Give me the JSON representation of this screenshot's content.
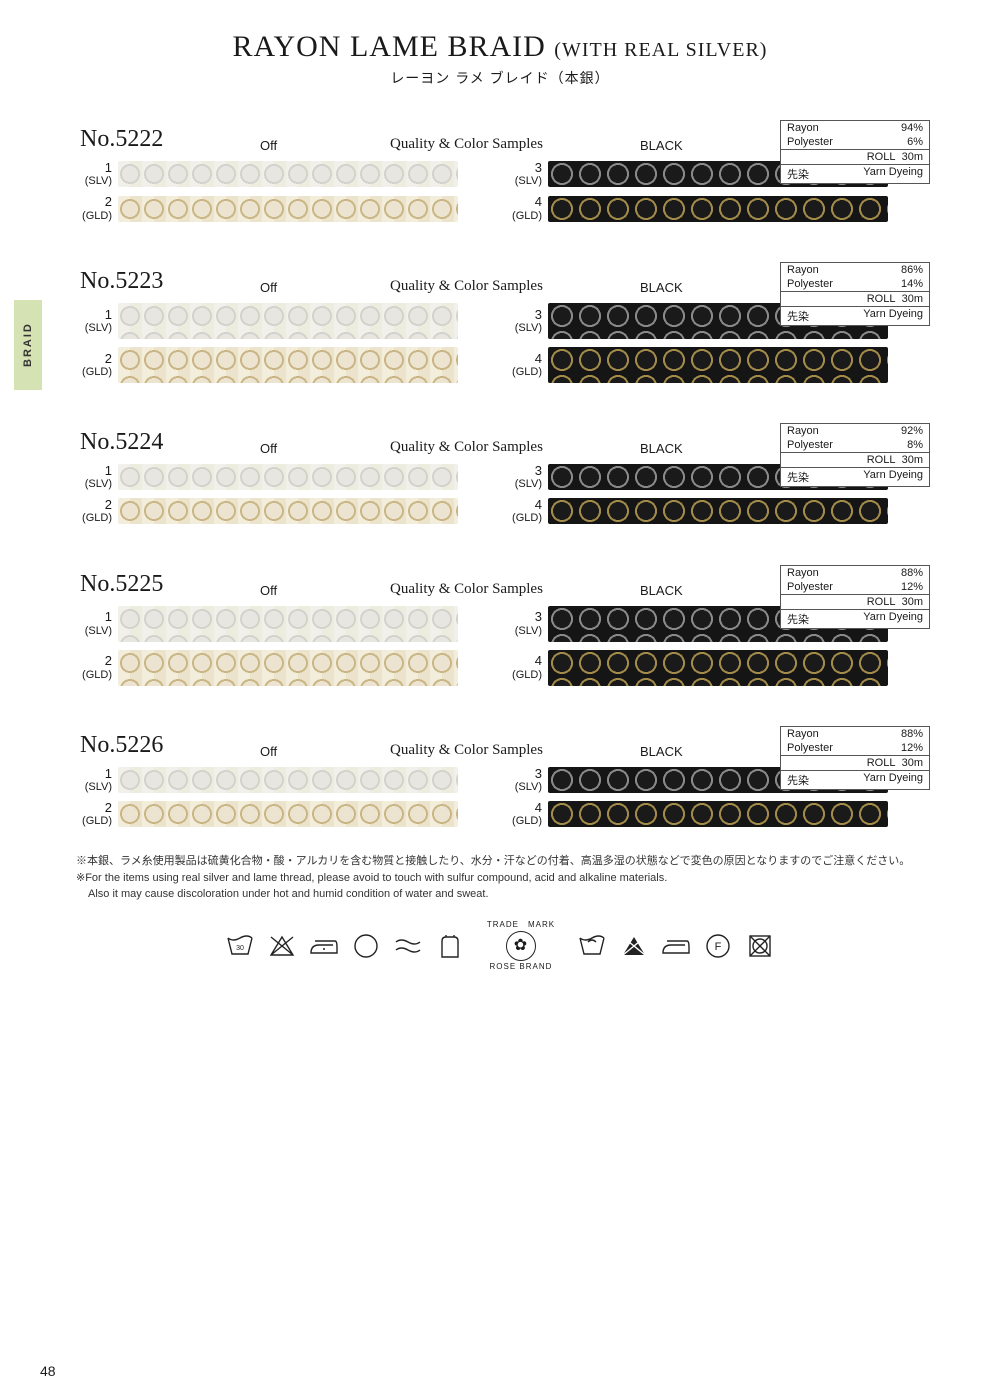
{
  "side_tab": "BRAID",
  "title": "RAYON LAME BRAID",
  "title_suffix": "(WITH REAL SILVER)",
  "subtitle_jp": "レーヨン ラメ ブレイド（本銀）",
  "header_labels": {
    "off": "Off",
    "qc": "Quality & Color Samples",
    "black": "BLACK"
  },
  "comp_labels": {
    "roll": "ROLL",
    "dye_jp": "先染",
    "dye_en": "Yarn Dyeing"
  },
  "sample_codes": {
    "slv": "(SLV)",
    "gld": "(GLD)"
  },
  "products": [
    {
      "no": "No.5222",
      "composition": [
        [
          "Rayon",
          "94%"
        ],
        [
          "Polyester",
          "6%"
        ]
      ],
      "roll": "30m",
      "braid_height": "normal"
    },
    {
      "no": "No.5223",
      "composition": [
        [
          "Rayon",
          "86%"
        ],
        [
          "Polyester",
          "14%"
        ]
      ],
      "roll": "30m",
      "braid_height": "tall"
    },
    {
      "no": "No.5224",
      "composition": [
        [
          "Rayon",
          "92%"
        ],
        [
          "Polyester",
          "8%"
        ]
      ],
      "roll": "30m",
      "braid_height": "normal"
    },
    {
      "no": "No.5225",
      "composition": [
        [
          "Rayon",
          "88%"
        ],
        [
          "Polyester",
          "12%"
        ]
      ],
      "roll": "30m",
      "braid_height": "tall"
    },
    {
      "no": "No.5226",
      "composition": [
        [
          "Rayon",
          "88%"
        ],
        [
          "Polyester",
          "12%"
        ]
      ],
      "roll": "30m",
      "braid_height": "normal"
    }
  ],
  "footnotes": {
    "jp": "※本銀、ラメ糸使用製品は硫黄化合物・酸・アルカリを含む物質と接触したり、水分・汗などの付着、高温多湿の状態などで変色の原因となりますのでご注意ください。",
    "en1": "※For the items using real silver and  lame thread, please avoid to touch with sulfur compound, acid and alkaline materials.",
    "en2": "Also it may cause discoloration under hot and humid condition of water and sweat."
  },
  "trademark": {
    "top": "TRADE　MARK",
    "bottom": "ROSE BRAND"
  },
  "care_icons_left": [
    "wash-30",
    "no-bleach",
    "iron-low",
    "dryclean",
    "no-wring",
    "dry-shade"
  ],
  "care_icons_right": [
    "hand-wash",
    "no-bleach-2",
    "iron",
    "dryclean-f",
    "no-tumble"
  ],
  "page_number": "48",
  "colors": {
    "page_bg": "#ffffff",
    "text": "#1a1a1a",
    "tab_bg": "#d5e2b3",
    "box_border": "#555555"
  }
}
